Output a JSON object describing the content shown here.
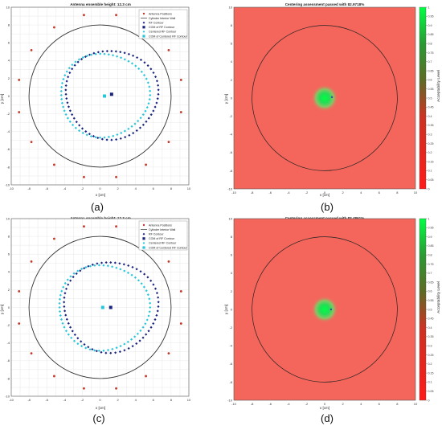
{
  "panels": [
    {
      "caption": "(a)",
      "title": "Antenna ensemble height: 12.3 cm",
      "xlabel": "x [cm]",
      "ylabel": "y [cm]",
      "legend": [
        "Antenna Positions",
        "Cylinder Interior Wall",
        "RF Contour",
        "COM of RF Contour",
        "Centered RF Contour",
        "COM of Centered RF Contour"
      ]
    },
    {
      "caption": "(b)",
      "title": "Centering assessment passed with 82.9718%",
      "xlabel": "x [cm]",
      "ylabel": "y [cm]",
      "colorbar_label": "Acceptability Level"
    },
    {
      "caption": "(c)",
      "title": "Antenna ensemble height: 12.3 cm",
      "xlabel": "x [cm]",
      "ylabel": "y [cm]",
      "legend": [
        "Antenna Positions",
        "Cylinder Interior Wall",
        "RF Contour",
        "COM of RF Contour",
        "Centered RF Contour",
        "COM of Centered RF Contour"
      ]
    },
    {
      "caption": "(d)",
      "title": "Centering assessment passed with 83.4861%",
      "xlabel": "x [cm]",
      "ylabel": "y [cm]",
      "colorbar_label": "Acceptability Level"
    }
  ],
  "colors": {
    "antenna": "#c0392b",
    "wall": "#333333",
    "rf_contour": "#1a237e",
    "centered_contour": "#26c6da",
    "background_fail": "#f4665b",
    "accept_high": "#00ff44"
  },
  "chart_data": [
    {
      "type": "scatter",
      "panel": "(a)",
      "title": "Antenna ensemble height: 12.3 cm",
      "xlabel": "x [cm]",
      "ylabel": "y [cm]",
      "xlim": [
        -10,
        10
      ],
      "ylim": [
        -10,
        10
      ],
      "xticks": [
        -10,
        -8,
        -6,
        -4,
        -2,
        0,
        2,
        4,
        6,
        8,
        10
      ],
      "yticks": [
        -10,
        -8,
        -6,
        -4,
        -2,
        0,
        2,
        4,
        6,
        8,
        10
      ],
      "grid": true,
      "legend_position": "top-right",
      "antenna_ring_radius": 9.3,
      "antenna_count": 16,
      "cylinder_radius": 8,
      "rf_contour": {
        "center": [
          1.3,
          0.2
        ],
        "rx": 5.2,
        "ry": 5.0
      },
      "com_rf_contour": [
        1.3,
        0.2
      ],
      "centered_contour": {
        "center": [
          0.5,
          0.1
        ],
        "rx": 5.0,
        "ry": 4.7
      },
      "com_centered_contour": [
        0.5,
        0.0
      ]
    },
    {
      "type": "heatmap",
      "panel": "(b)",
      "title": "Centering assessment passed with 82.9718%",
      "xlabel": "x [cm]",
      "ylabel": "y [cm]",
      "xlim": [
        -10,
        10
      ],
      "ylim": [
        -10,
        10
      ],
      "xticks": [
        -10,
        -8,
        -6,
        -4,
        -2,
        0,
        2,
        4,
        6,
        8,
        10
      ],
      "yticks": [
        -10,
        -8,
        -6,
        -4,
        -2,
        0,
        2,
        4,
        6,
        8,
        10
      ],
      "cylinder_radius": 8,
      "acceptable_center": [
        0,
        0
      ],
      "acceptable_radius": 1.5,
      "com_marker": [
        0.8,
        0.1
      ],
      "colorbar_ticks": [
        0,
        0.05,
        0.1,
        0.15,
        0.2,
        0.25,
        0.3,
        0.35,
        0.4,
        0.45,
        0.5,
        0.55,
        0.6,
        0.65,
        0.7,
        0.75,
        0.8,
        0.85,
        0.9,
        0.95,
        1
      ]
    },
    {
      "type": "scatter",
      "panel": "(c)",
      "title": "Antenna ensemble height: 12.3 cm",
      "xlabel": "x [cm]",
      "ylabel": "y [cm]",
      "xlim": [
        -10,
        10
      ],
      "ylim": [
        -10,
        10
      ],
      "xticks": [
        -10,
        -8,
        -6,
        -4,
        -2,
        0,
        2,
        4,
        6,
        8,
        10
      ],
      "yticks": [
        -10,
        -8,
        -6,
        -4,
        -2,
        0,
        2,
        4,
        6,
        8,
        10
      ],
      "grid": true,
      "legend_position": "top-right",
      "antenna_ring_radius": 9.3,
      "antenna_count": 16,
      "cylinder_radius": 8,
      "rf_contour": {
        "center": [
          1.2,
          0.1
        ],
        "rx": 5.3,
        "ry": 5.1
      },
      "com_rf_contour": [
        1.2,
        0.0
      ],
      "centered_contour": {
        "center": [
          0.4,
          0.0
        ],
        "rx": 5.1,
        "ry": 4.8
      },
      "com_centered_contour": [
        0.3,
        0.0
      ]
    },
    {
      "type": "heatmap",
      "panel": "(d)",
      "title": "Centering assessment passed with 83.4861%",
      "xlabel": "x [cm]",
      "ylabel": "y [cm]",
      "xlim": [
        -10,
        10
      ],
      "ylim": [
        -10,
        10
      ],
      "xticks": [
        -10,
        -8,
        -6,
        -4,
        -2,
        0,
        2,
        4,
        6,
        8,
        10
      ],
      "yticks": [
        -10,
        -8,
        -6,
        -4,
        -2,
        0,
        2,
        4,
        6,
        8,
        10
      ],
      "cylinder_radius": 8,
      "acceptable_center": [
        0,
        0
      ],
      "acceptable_radius": 1.5,
      "com_marker": [
        0.7,
        0.0
      ],
      "colorbar_ticks": [
        0,
        0.05,
        0.1,
        0.15,
        0.2,
        0.25,
        0.3,
        0.35,
        0.4,
        0.45,
        0.5,
        0.55,
        0.6,
        0.65,
        0.7,
        0.75,
        0.8,
        0.85,
        0.9,
        0.95,
        1
      ]
    }
  ]
}
